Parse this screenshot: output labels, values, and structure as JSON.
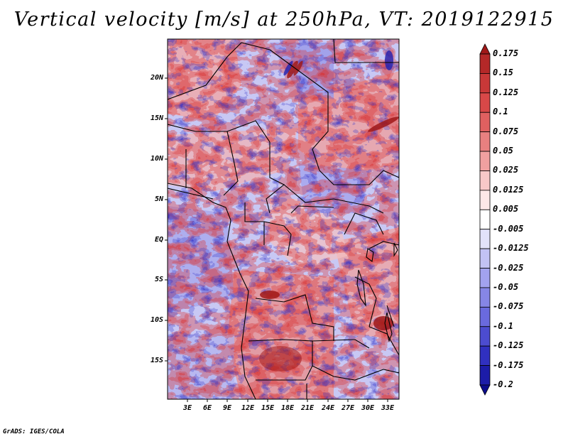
{
  "title": "Vertical velocity [m/s] at 250hPa, VT: 2019122915",
  "credit": "GrADS: IGES/COLA",
  "lat_labels": [
    "20N",
    "15N",
    "10N",
    "5N",
    "EQ",
    "5S",
    "10S",
    "15S"
  ],
  "lon_labels": [
    "3E",
    "6E",
    "9E",
    "12E",
    "15E",
    "18E",
    "21E",
    "24E",
    "27E",
    "30E",
    "33E"
  ],
  "colorbar": {
    "labels": [
      "0.175",
      "0.15",
      "0.125",
      "0.1",
      "0.075",
      "0.05",
      "0.025",
      "0.0125",
      "0.005",
      "-0.005",
      "-0.0125",
      "-0.025",
      "-0.05",
      "-0.075",
      "-0.1",
      "-0.125",
      "-0.175",
      "-0.2"
    ],
    "colors": [
      "#a01818",
      "#b42828",
      "#c83838",
      "#d84848",
      "#e06060",
      "#e88080",
      "#f0a0a0",
      "#f8c8c8",
      "#fde8e8",
      "#ffffff",
      "#e2e2fa",
      "#c2c2f4",
      "#a2a2ee",
      "#8686e6",
      "#6a6ade",
      "#4c4cd0",
      "#3030c0",
      "#1c1ca8",
      "#0c0c8c"
    ]
  }
}
